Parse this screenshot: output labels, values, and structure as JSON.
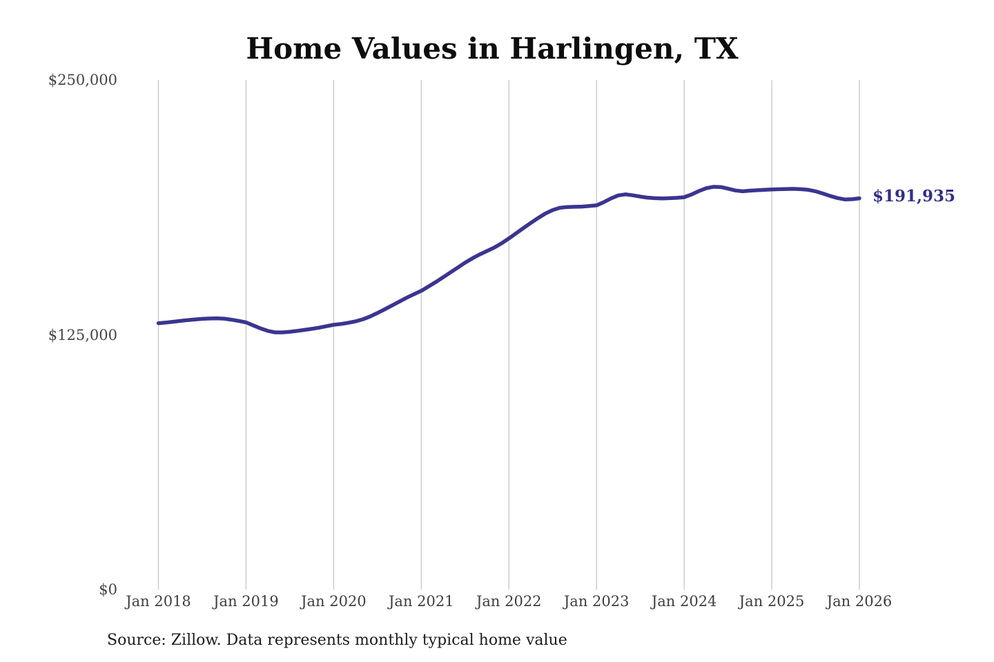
{
  "header": {
    "title": "Home Values in Harlingen, TX"
  },
  "footer": {
    "source_note": "Source: Zillow. Data represents monthly typical home value"
  },
  "chart_data": {
    "type": "line",
    "title": "Home Values in Harlingen, TX",
    "series_name": "Monthly typical home value",
    "xlabel": "",
    "ylabel": "",
    "ylim": [
      0,
      250000
    ],
    "grid": "vertical-only",
    "legend": "none",
    "last_value_label": "$191,935",
    "last_value": 191935,
    "colors": {
      "line": "#3b3590",
      "grid": "#c9c9c9",
      "value_label": "#343085",
      "title": "#0d0d0d",
      "axis_text": "#454545"
    },
    "x_tick_labels": [
      "Jan 2018",
      "Jan 2019",
      "Jan 2020",
      "Jan 2021",
      "Jan 2022",
      "Jan 2023",
      "Jan 2024",
      "Jan 2025",
      "Jan 2026"
    ],
    "y_ticks": [
      {
        "value": 0,
        "label": "$0"
      },
      {
        "value": 125000,
        "label": "$125,000"
      },
      {
        "value": 250000,
        "label": "$250,000"
      }
    ],
    "x": [
      "2018-01",
      "2018-02",
      "2018-03",
      "2018-04",
      "2018-05",
      "2018-06",
      "2018-07",
      "2018-08",
      "2018-09",
      "2018-10",
      "2018-11",
      "2018-12",
      "2019-01",
      "2019-02",
      "2019-03",
      "2019-04",
      "2019-05",
      "2019-06",
      "2019-07",
      "2019-08",
      "2019-09",
      "2019-10",
      "2019-11",
      "2019-12",
      "2020-01",
      "2020-02",
      "2020-03",
      "2020-04",
      "2020-05",
      "2020-06",
      "2020-07",
      "2020-08",
      "2020-09",
      "2020-10",
      "2020-11",
      "2020-12",
      "2021-01",
      "2021-02",
      "2021-03",
      "2021-04",
      "2021-05",
      "2021-06",
      "2021-07",
      "2021-08",
      "2021-09",
      "2021-10",
      "2021-11",
      "2021-12",
      "2022-01",
      "2022-02",
      "2022-03",
      "2022-04",
      "2022-05",
      "2022-06",
      "2022-07",
      "2022-08",
      "2022-09",
      "2022-10",
      "2022-11",
      "2022-12",
      "2023-01",
      "2023-02",
      "2023-03",
      "2023-04",
      "2023-05",
      "2023-06",
      "2023-07",
      "2023-08",
      "2023-09",
      "2023-10",
      "2023-11",
      "2023-12",
      "2024-01",
      "2024-02",
      "2024-03",
      "2024-04",
      "2024-05",
      "2024-06",
      "2024-07",
      "2024-08",
      "2024-09",
      "2024-10",
      "2024-11",
      "2024-12",
      "2025-01",
      "2025-02",
      "2025-03",
      "2025-04",
      "2025-05",
      "2025-06",
      "2025-07",
      "2025-08",
      "2025-09",
      "2025-10",
      "2025-11",
      "2025-12",
      "2026-01"
    ],
    "values": [
      130700,
      131000,
      131400,
      131800,
      132200,
      132500,
      132800,
      133000,
      133100,
      132900,
      132400,
      131800,
      131100,
      129600,
      128100,
      126900,
      126200,
      126200,
      126500,
      126900,
      127400,
      127900,
      128500,
      129200,
      129900,
      130300,
      130900,
      131600,
      132600,
      134000,
      135700,
      137500,
      139400,
      141300,
      143200,
      144900,
      146600,
      148700,
      150900,
      153200,
      155600,
      158000,
      160400,
      162500,
      164400,
      166100,
      167800,
      169900,
      172300,
      174800,
      177400,
      179900,
      182300,
      184500,
      186200,
      187300,
      187700,
      187800,
      187900,
      188200,
      188500,
      190100,
      191900,
      193400,
      193900,
      193400,
      192800,
      192300,
      192000,
      191900,
      192000,
      192200,
      192500,
      193800,
      195500,
      196900,
      197600,
      197500,
      196700,
      195800,
      195400,
      195700,
      195900,
      196100,
      196300,
      196400,
      196500,
      196600,
      196400,
      196100,
      195400,
      194300,
      193100,
      192100,
      191400,
      191500,
      191935
    ]
  }
}
